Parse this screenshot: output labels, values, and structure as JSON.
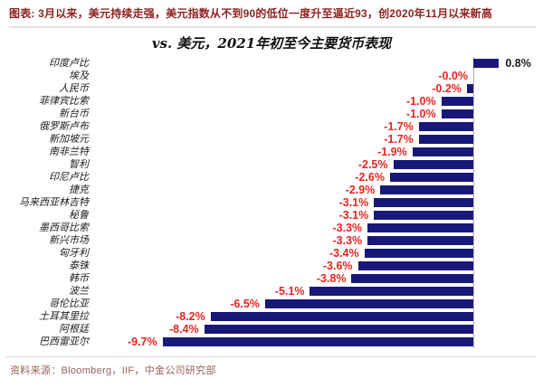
{
  "header": {
    "title": "图表: 3月以来，美元持续走强，美元指数从不到90的低位一度升至逼近93，创2020年11月以来新高"
  },
  "chart_data": {
    "type": "bar",
    "orientation": "horizontal",
    "title": "vs. 美元，2021年初至今主要货币表现",
    "unit": "%",
    "categories": [
      "印度卢比",
      "埃及",
      "人民币",
      "菲律宾比索",
      "新台币",
      "俄罗斯卢布",
      "新加坡元",
      "南非兰特",
      "智利",
      "印尼卢比",
      "捷克",
      "马来西亚林吉特",
      "秘鲁",
      "墨西哥比索",
      "新兴市场",
      "匈牙利",
      "泰铢",
      "韩币",
      "波兰",
      "哥伦比亚",
      "土耳其里拉",
      "阿根廷",
      "巴西雷亚尔"
    ],
    "values": [
      0.8,
      -0.0,
      -0.2,
      -1.0,
      -1.0,
      -1.7,
      -1.7,
      -1.9,
      -2.5,
      -2.6,
      -2.9,
      -3.1,
      -3.1,
      -3.3,
      -3.3,
      -3.4,
      -3.6,
      -3.8,
      -5.1,
      -6.5,
      -8.2,
      -8.4,
      -9.7
    ],
    "value_labels": [
      "0.8%",
      "-0.0%",
      "-0.2%",
      "-1.0%",
      "-1.0%",
      "-1.7%",
      "-1.7%",
      "-1.9%",
      "-2.5%",
      "-2.6%",
      "-2.9%",
      "-3.1%",
      "-3.1%",
      "-3.3%",
      "-3.3%",
      "-3.4%",
      "-3.6%",
      "-3.8%",
      "-5.1%",
      "-6.5%",
      "-8.2%",
      "-8.4%",
      "-9.7%"
    ],
    "xlim": [
      -10.8,
      2.2
    ],
    "grid": false,
    "legend": null,
    "colors": {
      "bar": "#181878",
      "negative_label": "#e8251f",
      "positive_label": "#1a1a1a",
      "axis_line": "#b3b3b3"
    }
  },
  "footer": {
    "source": "资料来源：Bloomberg，IIF，中金公司研究部"
  }
}
